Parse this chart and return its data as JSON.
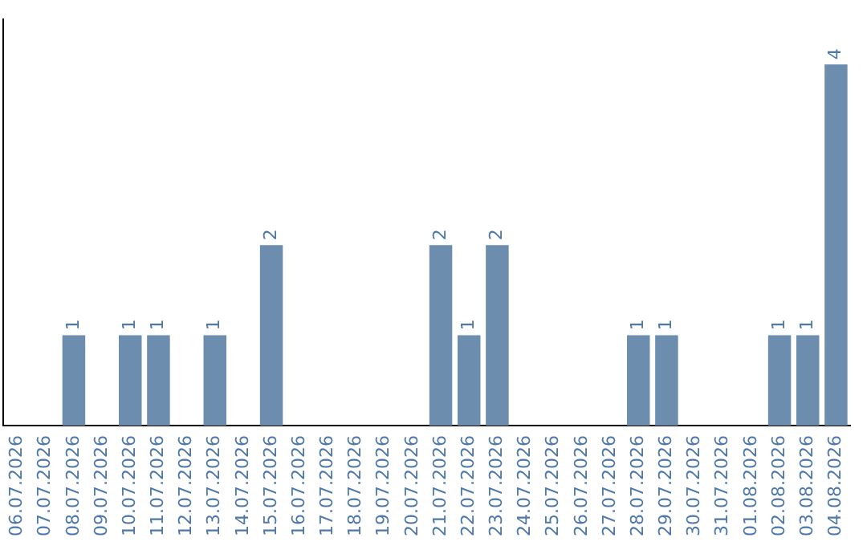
{
  "chart_data": {
    "type": "bar",
    "categories": [
      "06.07.2026",
      "07.07.2026",
      "08.07.2026",
      "09.07.2026",
      "10.07.2026",
      "11.07.2026",
      "12.07.2026",
      "13.07.2026",
      "14.07.2026",
      "15.07.2026",
      "16.07.2026",
      "17.07.2026",
      "18.07.2026",
      "19.07.2026",
      "20.07.2026",
      "21.07.2026",
      "22.07.2026",
      "23.07.2026",
      "24.07.2026",
      "25.07.2026",
      "26.07.2026",
      "27.07.2026",
      "28.07.2026",
      "29.07.2026",
      "30.07.2026",
      "31.07.2026",
      "01.08.2026",
      "02.08.2026",
      "03.08.2026",
      "04.08.2026"
    ],
    "values": [
      0,
      0,
      1,
      0,
      1,
      1,
      0,
      1,
      0,
      2,
      0,
      0,
      0,
      0,
      0,
      2,
      1,
      2,
      0,
      0,
      0,
      0,
      1,
      1,
      0,
      0,
      0,
      1,
      1,
      4
    ],
    "value_labels": [
      null,
      null,
      "1",
      null,
      "1",
      "1",
      null,
      "1",
      null,
      "2",
      null,
      null,
      null,
      null,
      null,
      "2",
      "1",
      "2",
      null,
      null,
      null,
      null,
      "1",
      "1",
      null,
      null,
      null,
      "1",
      "1",
      "4"
    ],
    "color": "#6c8dae",
    "grid": false,
    "legend": false,
    "tick_labels": "x"
  }
}
